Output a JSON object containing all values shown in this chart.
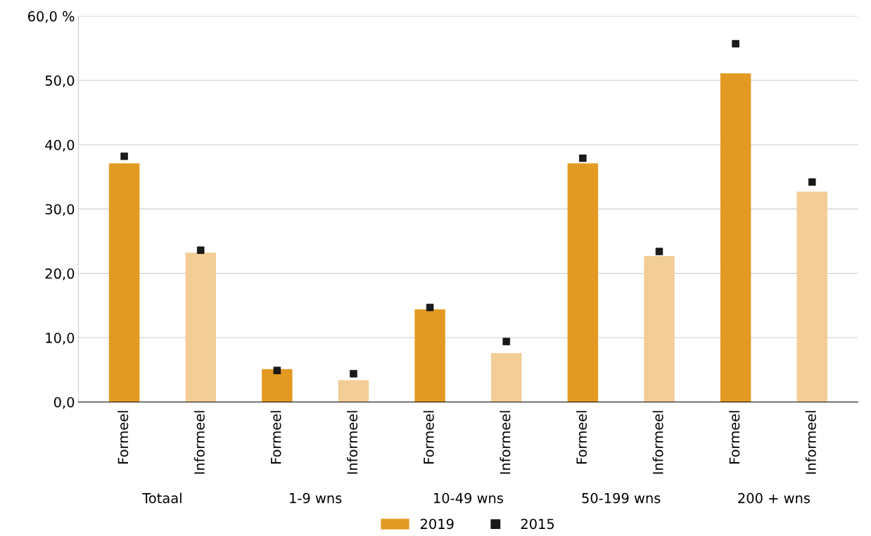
{
  "chart_data": {
    "type": "bar",
    "categories": [
      "Formeel",
      "Informeel",
      "Formeel",
      "Informeel",
      "Formeel",
      "Informeel",
      "Formeel",
      "Informeel",
      "Formeel",
      "Informeel"
    ],
    "series": [
      {
        "name": "2019",
        "color": "#e39a22",
        "colors": [
          "#e39a22",
          "#f2cd96",
          "#e39a22",
          "#f2cd96",
          "#e39a22",
          "#f2cd96",
          "#e39a22",
          "#f2cd96",
          "#e39a22",
          "#f2cd96"
        ],
        "values": [
          37.1,
          23.2,
          5.1,
          3.4,
          14.4,
          7.6,
          37.1,
          22.7,
          51.1,
          32.7
        ]
      },
      {
        "name": "2015",
        "type": "scatter",
        "marker": "square",
        "color": "#1a1a1a",
        "values": [
          38.2,
          23.6,
          4.9,
          4.4,
          14.7,
          9.4,
          37.9,
          23.4,
          55.7,
          34.2
        ]
      }
    ],
    "annotations": [
      "Totaal",
      "1-9 wns",
      "10-49 wns",
      "50-199 wns",
      "200 + wns"
    ],
    "ylim": [
      0,
      60
    ],
    "yticks": [
      {
        "value": 0,
        "label": "0,0"
      },
      {
        "value": 10,
        "label": "10,0"
      },
      {
        "value": 20,
        "label": "20,0"
      },
      {
        "value": 30,
        "label": "30,0"
      },
      {
        "value": 40,
        "label": "40,0"
      },
      {
        "value": 50,
        "label": "50,0"
      },
      {
        "value": 60,
        "label": "60,0 %"
      }
    ],
    "grid": "y",
    "legend": "bottom"
  }
}
